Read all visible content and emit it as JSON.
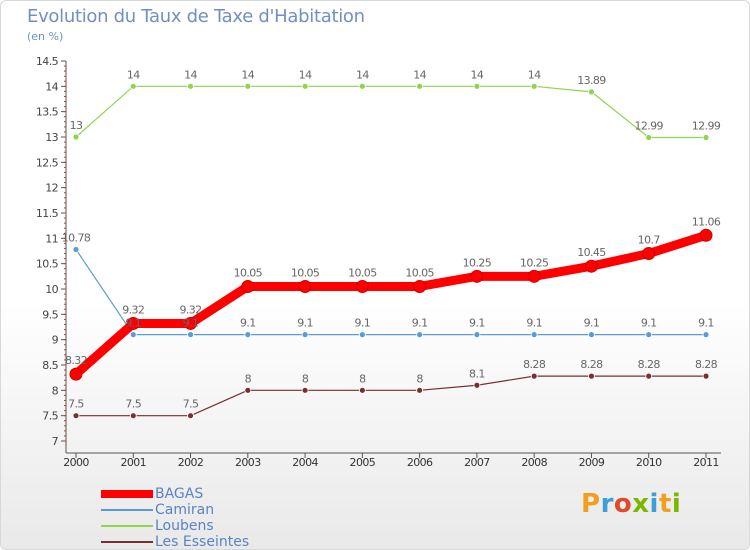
{
  "title": "Evolution du Taux de Taxe d'Habitation",
  "subtitle": "(en %)",
  "logo": {
    "text": "Proxiti",
    "letters": [
      "P",
      "r",
      "o",
      "x",
      "i",
      "t",
      "i"
    ],
    "colors": [
      "#f0a020",
      "#3ba0d8",
      "#e04a2a",
      "#7ab800",
      "#3ba0d8",
      "#f0a020",
      "#7ab800"
    ]
  },
  "chart_data": {
    "type": "line",
    "x": [
      "2000",
      "2001",
      "2002",
      "2003",
      "2004",
      "2005",
      "2006",
      "2007",
      "2008",
      "2009",
      "2010",
      "2011"
    ],
    "ylim": [
      7,
      14.5
    ],
    "yticks": [
      "7",
      "7.5",
      "8",
      "8.5",
      "9",
      "9.5",
      "10",
      "10.5",
      "11",
      "11.5",
      "12",
      "12.5",
      "13",
      "13.5",
      "14",
      "14.5"
    ],
    "series": [
      {
        "name": "BAGAS",
        "color": "#ff0000",
        "values": [
          8.32,
          9.32,
          9.32,
          10.05,
          10.05,
          10.05,
          10.05,
          10.25,
          10.25,
          10.45,
          10.7,
          11.06
        ],
        "labels": [
          "8.32",
          "9.32",
          "9.32",
          "10.05",
          "10.05",
          "10.05",
          "10.05",
          "10.25",
          "10.25",
          "10.45",
          "10.7",
          "11.06"
        ]
      },
      {
        "name": "Camiran",
        "color": "#5b9bd5",
        "values": [
          10.78,
          9.1,
          9.1,
          9.1,
          9.1,
          9.1,
          9.1,
          9.1,
          9.1,
          9.1,
          9.1,
          9.1
        ],
        "labels": [
          "10.78",
          "9.1",
          "9.1",
          "9.1",
          "9.1",
          "9.1",
          "9.1",
          "9.1",
          "9.1",
          "9.1",
          "9.1",
          "9.1"
        ]
      },
      {
        "name": "Loubens",
        "color": "#8fd44a",
        "values": [
          13,
          14,
          14,
          14,
          14,
          14,
          14,
          14,
          14,
          13.89,
          12.99,
          12.99
        ],
        "labels": [
          "13",
          "14",
          "14",
          "14",
          "14",
          "14",
          "14",
          "14",
          "14",
          "13.89",
          "12.99",
          "12.99"
        ]
      },
      {
        "name": "Les Esseintes",
        "color": "#7a2e2e",
        "values": [
          7.5,
          7.5,
          7.5,
          8,
          8,
          8,
          8,
          8.1,
          8.28,
          8.28,
          8.28,
          8.28
        ],
        "labels": [
          "7.5",
          "7.5",
          "7.5",
          "8",
          "8",
          "8",
          "8",
          "8.1",
          "8.28",
          "8.28",
          "8.28",
          "8.28"
        ]
      }
    ],
    "legend": "bottom-left",
    "grid": false
  }
}
